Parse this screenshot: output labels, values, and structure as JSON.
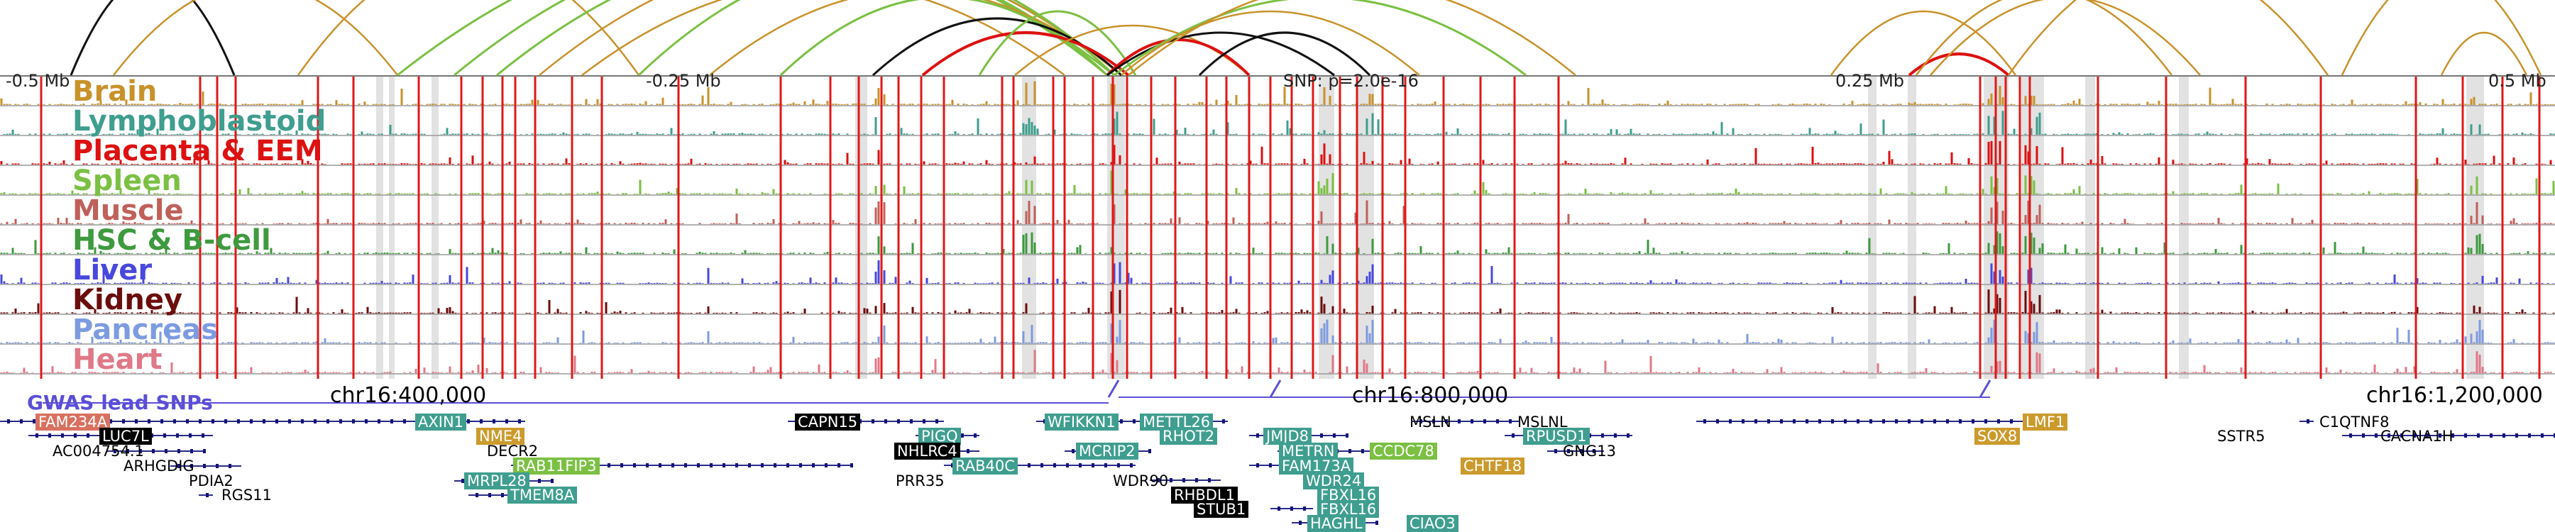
{
  "colors": {
    "link_orange": "#c8922b",
    "link_green": "#7bc043",
    "link_black": "#111111",
    "link_red": "#dd1111",
    "highlight_gray": "#e2e2e2",
    "snp_red": "#e01818",
    "gwas_purple": "#5b4fd6",
    "gene_line": "#2a2a8a",
    "gene_box": "#14147a"
  },
  "axis": {
    "ticks": [
      "-0.5 Mb",
      "-0.25 Mb",
      "SNP: p=2.0e-16",
      "0.25 Mb",
      "0.5 Mb"
    ]
  },
  "tracks": [
    {
      "name": "Brain",
      "color": "#c8922b",
      "icon": "brain-track"
    },
    {
      "name": "Lymphoblastoid",
      "color": "#3f9e8f",
      "icon": "lymphoblastoid-track"
    },
    {
      "name": "Placenta & EEM",
      "color": "#dd1111",
      "icon": "placenta-track"
    },
    {
      "name": "Spleen",
      "color": "#7bc043",
      "icon": "spleen-track"
    },
    {
      "name": "Muscle",
      "color": "#c0605a",
      "icon": "muscle-track"
    },
    {
      "name": "HSC & B-cell",
      "color": "#3e9a3e",
      "icon": "hsc-track"
    },
    {
      "name": "Liver",
      "color": "#4848dd",
      "icon": "liver-track"
    },
    {
      "name": "Kidney",
      "color": "#6b0d0d",
      "icon": "kidney-track"
    },
    {
      "name": "Pancreas",
      "color": "#7d9be0",
      "icon": "pancreas-track"
    },
    {
      "name": "Heart",
      "color": "#e07888",
      "icon": "heart-track"
    }
  ],
  "gwas": {
    "title": "GWAS lead SNPs",
    "chr_labels": [
      "chr16:400,000",
      "chr16:800,000",
      "chr16:1,200,000"
    ]
  },
  "genes": [
    {
      "name": "FAM234A",
      "style": "salmon"
    },
    {
      "name": "LUC7L",
      "style": "black"
    },
    {
      "name": "AXIN1",
      "style": "teal"
    },
    {
      "name": "AC004754.1",
      "style": "plain"
    },
    {
      "name": "ARHGDIG",
      "style": "plain"
    },
    {
      "name": "PDIA2",
      "style": "plain"
    },
    {
      "name": "RGS11",
      "style": "plain"
    },
    {
      "name": "NME4",
      "style": "gold"
    },
    {
      "name": "DECR2",
      "style": "plain"
    },
    {
      "name": "RAB11FIP3",
      "style": "lightgreen"
    },
    {
      "name": "MRPL28",
      "style": "teal"
    },
    {
      "name": "TMEM8A",
      "style": "teal"
    },
    {
      "name": "CAPN15",
      "style": "black"
    },
    {
      "name": "PIGQ",
      "style": "teal"
    },
    {
      "name": "NHLRC4",
      "style": "black"
    },
    {
      "name": "RAB40C",
      "style": "teal"
    },
    {
      "name": "PRR35",
      "style": "plain"
    },
    {
      "name": "WFIKKN1",
      "style": "teal"
    },
    {
      "name": "METTL26",
      "style": "teal"
    },
    {
      "name": "RHOT2",
      "style": "teal"
    },
    {
      "name": "MCRIP2",
      "style": "teal"
    },
    {
      "name": "WDR90",
      "style": "plain"
    },
    {
      "name": "RHBDL1",
      "style": "black"
    },
    {
      "name": "STUB1",
      "style": "black"
    },
    {
      "name": "JMJD8",
      "style": "teal"
    },
    {
      "name": "METRN",
      "style": "teal"
    },
    {
      "name": "CCDC78",
      "style": "lightgreen"
    },
    {
      "name": "FAM173A",
      "style": "teal"
    },
    {
      "name": "WDR24",
      "style": "teal"
    },
    {
      "name": "FBXL16",
      "style": "teal"
    },
    {
      "name": "FBXL16",
      "style": "teal"
    },
    {
      "name": "HAGHL",
      "style": "teal"
    },
    {
      "name": "CIAO3",
      "style": "teal"
    },
    {
      "name": "CHTF18",
      "style": "gold"
    },
    {
      "name": "MSLN",
      "style": "plain"
    },
    {
      "name": "MSLNL",
      "style": "plain"
    },
    {
      "name": "RPUSD1",
      "style": "teal"
    },
    {
      "name": "GNG13",
      "style": "plain"
    },
    {
      "name": "LMF1",
      "style": "gold"
    },
    {
      "name": "SOX8",
      "style": "gold"
    },
    {
      "name": "SSTR5",
      "style": "plain"
    },
    {
      "name": "C1QTNF8",
      "style": "plain"
    },
    {
      "name": "CACNA1H",
      "style": "plain"
    }
  ]
}
